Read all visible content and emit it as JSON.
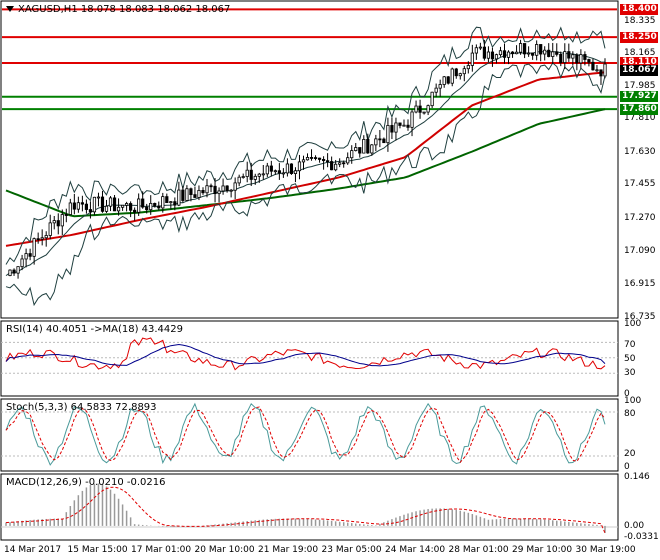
{
  "header": {
    "dropdown_icon": "triangle-down-icon",
    "symbol_info": "XAGUSD,H1  18.078 18.083 18.062 18.067"
  },
  "price_axis": {
    "ticks": [
      "18.400",
      "18.335",
      "18.250",
      "18.165",
      "18.110",
      "18.067",
      "17.985",
      "17.927",
      "17.860",
      "17.810",
      "17.630",
      "17.455",
      "17.270",
      "17.090",
      "16.915",
      "16.735"
    ],
    "tags": [
      {
        "value": "18.400",
        "color": "#e00000"
      },
      {
        "value": "18.250",
        "color": "#e00000"
      },
      {
        "value": "18.110",
        "color": "#e00000"
      },
      {
        "value": "18.067",
        "color": "#000000"
      },
      {
        "value": "17.927",
        "color": "#008000"
      },
      {
        "value": "17.860",
        "color": "#008000"
      }
    ]
  },
  "rsi_panel": {
    "label": "RSI(14) 40.4051  ->MA(18) 43.4429",
    "ticks": [
      "100",
      "70",
      "50",
      "30",
      "0"
    ]
  },
  "stoch_panel": {
    "label": "Stoch(5,3,3) 64.5833 72.8893",
    "ticks": [
      "100",
      "80",
      "20",
      "0"
    ]
  },
  "macd_panel": {
    "label": "MACD(12,26,9) -0.0210 -0.0216",
    "ticks": [
      "0.146",
      "0.00",
      "-0.0331"
    ]
  },
  "time_axis": {
    "labels": [
      "14 Mar 2017",
      "15 Mar 15:00",
      "17 Mar 01:00",
      "20 Mar 10:00",
      "21 Mar 19:00",
      "23 Mar 05:00",
      "24 Mar 14:00",
      "28 Mar 01:00",
      "29 Mar 10:00",
      "30 Mar 19:00"
    ]
  },
  "colors": {
    "resistance": "#e00000",
    "support": "#008000",
    "ma_fast": "#d00000",
    "ma_slow": "#006400",
    "bollinger": "#1f3f3f",
    "candles": "#000000",
    "rsi": "#e00000",
    "rsi_ma": "#00008b",
    "stoch_main": "#4a9a9a",
    "stoch_signal": "#e00000",
    "macd_hist": "#9a9a9a",
    "macd_signal": "#e00000"
  },
  "chart_data": {
    "type": "line",
    "title": "XAGUSD,H1",
    "ohlc_last": {
      "open": 18.078,
      "high": 18.083,
      "low": 18.062,
      "close": 18.067
    },
    "ylim": [
      16.735,
      18.44
    ],
    "horizontal_levels": [
      {
        "value": 18.4,
        "kind": "resistance"
      },
      {
        "value": 18.25,
        "kind": "resistance"
      },
      {
        "value": 18.11,
        "kind": "resistance"
      },
      {
        "value": 17.927,
        "kind": "support"
      },
      {
        "value": 17.86,
        "kind": "support"
      }
    ],
    "x": [
      "14 Mar 2017",
      "15 Mar 15:00",
      "17 Mar 01:00",
      "20 Mar 10:00",
      "21 Mar 19:00",
      "23 Mar 05:00",
      "24 Mar 14:00",
      "28 Mar 01:00",
      "29 Mar 10:00",
      "30 Mar 19:00"
    ],
    "series": [
      {
        "name": "close",
        "values": [
          16.96,
          17.35,
          17.33,
          17.42,
          17.53,
          17.58,
          17.78,
          18.16,
          18.2,
          18.07
        ]
      },
      {
        "name": "ma_fast",
        "values": [
          17.12,
          17.18,
          17.26,
          17.33,
          17.41,
          17.49,
          17.6,
          17.88,
          18.02,
          18.06
        ]
      },
      {
        "name": "ma_slow",
        "values": [
          17.42,
          17.28,
          17.3,
          17.34,
          17.38,
          17.43,
          17.49,
          17.63,
          17.78,
          17.86
        ]
      }
    ],
    "rsi": {
      "value": 40.4051,
      "ma": 43.4429,
      "ylim": [
        0,
        100
      ]
    },
    "stoch": {
      "main": 64.5833,
      "signal": 72.8893,
      "ylim": [
        0,
        100
      ]
    },
    "macd": {
      "main": -0.021,
      "signal": -0.0216,
      "ylim": [
        -0.0331,
        0.146
      ]
    }
  }
}
